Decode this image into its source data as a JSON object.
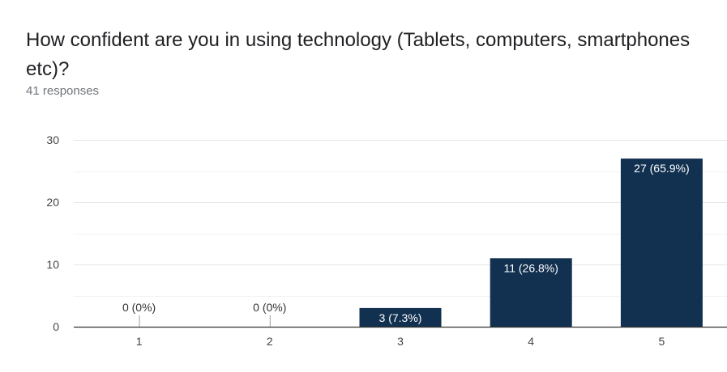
{
  "header": {
    "title": "How confident are you in using technology (Tablets, computers, smartphones etc)?",
    "responses": "41 responses"
  },
  "colors": {
    "bar": "#123050",
    "grid": "#e6e6e6",
    "axis": "#333333",
    "tick_text": "#444444",
    "label_inside": "#ffffff",
    "label_outside": "#333333"
  },
  "chart_data": {
    "type": "bar",
    "categories": [
      "1",
      "2",
      "3",
      "4",
      "5"
    ],
    "values": [
      0,
      0,
      3,
      11,
      27
    ],
    "data_labels": [
      "0 (0%)",
      "0 (0%)",
      "3 (7.3%)",
      "11 (26.8%)",
      "27 (65.9%)"
    ],
    "y_ticks": [
      0,
      10,
      20,
      30
    ],
    "ylim": [
      0,
      30
    ],
    "title": "How confident are you in using technology (Tablets, computers, smartphones etc)?",
    "xlabel": "",
    "ylabel": "",
    "grid": true,
    "legend": "none"
  }
}
